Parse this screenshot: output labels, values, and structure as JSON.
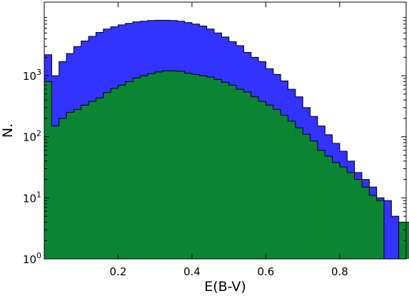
{
  "chart_data": {
    "type": "histogram",
    "xlabel": "E(B-V)",
    "ylabel": "N.",
    "xlim": [
      0.0,
      0.98
    ],
    "ylim": [
      1,
      16000
    ],
    "yscale": "log",
    "bin_width": 0.02,
    "bin_start": 0.0,
    "xticks": [
      {
        "value": 0.2,
        "label": "0.2"
      },
      {
        "value": 0.4,
        "label": "0.4"
      },
      {
        "value": 0.6,
        "label": "0.6"
      },
      {
        "value": 0.8,
        "label": "0.8"
      }
    ],
    "yticks": [
      {
        "value": 1,
        "base": "10",
        "exp": "0"
      },
      {
        "value": 10,
        "base": "10",
        "exp": "1"
      },
      {
        "value": 100,
        "base": "10",
        "exp": "2"
      },
      {
        "value": 1000,
        "base": "10",
        "exp": "3"
      }
    ],
    "series": [
      {
        "color": "#3333ff",
        "values": [
          2200,
          1000,
          1700,
          2300,
          3000,
          3700,
          4400,
          5100,
          5800,
          6300,
          6800,
          7200,
          7600,
          7800,
          8000,
          8100,
          8100,
          8000,
          7800,
          7400,
          7000,
          6500,
          5800,
          5000,
          4300,
          3600,
          3100,
          2400,
          2000,
          1700,
          1300,
          1050,
          820,
          600,
          450,
          300,
          215,
          150,
          108,
          78,
          58,
          40,
          26,
          20,
          15,
          10,
          9,
          5.0,
          1,
          4
        ]
      },
      {
        "color": "#0b8533",
        "values": [
          800,
          150,
          200,
          250,
          280,
          330,
          380,
          430,
          530,
          620,
          700,
          800,
          920,
          1000,
          1080,
          1150,
          1200,
          1200,
          1180,
          1100,
          1050,
          1000,
          950,
          870,
          780,
          700,
          600,
          540,
          450,
          380,
          330,
          280,
          225,
          180,
          140,
          110,
          85,
          60,
          48,
          38,
          32,
          26,
          20,
          15,
          11,
          9,
          1,
          1,
          4,
          4
        ]
      }
    ]
  }
}
